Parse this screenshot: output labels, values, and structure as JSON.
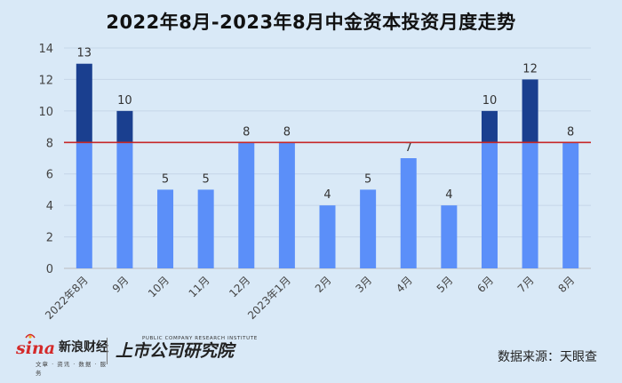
{
  "chart_data": {
    "type": "bar",
    "title": "2022年8月-2023年8月中金资本投资月度走势",
    "categories": [
      "2022年8月",
      "9月",
      "10月",
      "11月",
      "12月",
      "2023年1月",
      "2月",
      "3月",
      "4月",
      "5月",
      "6月",
      "7月",
      "8月"
    ],
    "values": [
      13,
      10,
      5,
      5,
      8,
      8,
      4,
      5,
      7,
      4,
      10,
      12,
      8
    ],
    "yticks": [
      0,
      2,
      4,
      6,
      8,
      10,
      12,
      14
    ],
    "ylim": [
      0,
      14
    ],
    "reference_line": 8,
    "grid": true,
    "colors": {
      "base": "#5b8ff9",
      "above_reference": "#1a3f8f",
      "reference_line": "#c62828",
      "gridline": "#c5d6e8",
      "axis_text": "#444444",
      "label_text": "#333333"
    }
  },
  "footer": {
    "sina_word": "sina",
    "sina_cn": "新浪财经",
    "sina_sub": "文章 · 资讯 · 数据 · 服务",
    "institute_en": "PUBLIC COMPANY RESEARCH INSTITUTE",
    "institute_cn": "上市公司研究院",
    "source": "数据来源：天眼查"
  }
}
